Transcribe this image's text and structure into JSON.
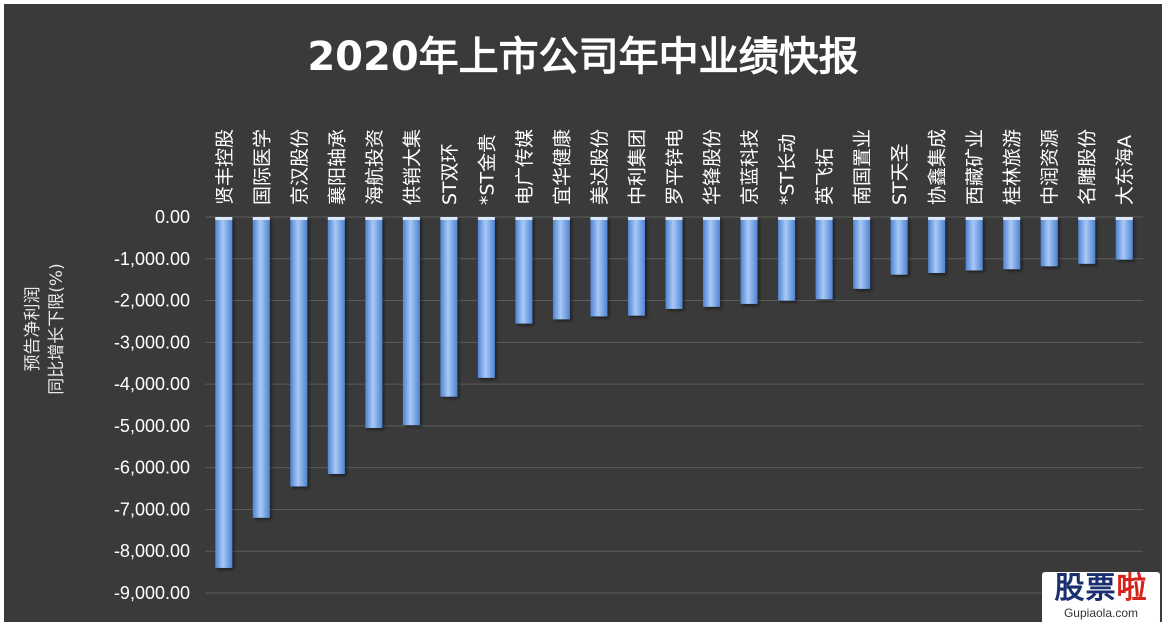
{
  "chart_data": {
    "type": "bar",
    "title": "2020年上市公司年中业绩快报",
    "ylabel_lines": [
      "预告净利润",
      "同比增长下限(%)"
    ],
    "ylim": [
      -9000,
      0
    ],
    "yticks": [
      "0.00",
      "-1,000.00",
      "-2,000.00",
      "-3,000.00",
      "-4,000.00",
      "-5,000.00",
      "-6,000.00",
      "-7,000.00",
      "-8,000.00",
      "-9,000.00"
    ],
    "categories": [
      "贤丰控股",
      "国际医学",
      "京汉股份",
      "襄阳轴承",
      "海航投资",
      "供销大集",
      "ST双环",
      "*ST金贵",
      "电广传媒",
      "宜华健康",
      "美达股份",
      "中利集团",
      "罗平锌电",
      "华锋股份",
      "京蓝科技",
      "*ST长动",
      "英飞拓",
      "南国置业",
      "ST天圣",
      "协鑫集成",
      "西藏矿业",
      "桂林旅游",
      "中润资源",
      "名雕股份",
      "大东海A"
    ],
    "values": [
      -8400,
      -7200,
      -6450,
      -6150,
      -5050,
      -4980,
      -4300,
      -3850,
      -2550,
      -2450,
      -2380,
      -2360,
      -2200,
      -2150,
      -2080,
      -2000,
      -1970,
      -1720,
      -1380,
      -1340,
      -1280,
      -1250,
      -1180,
      -1120,
      -1020
    ],
    "grid": true,
    "colors": {
      "background": "#3a3a3a",
      "grid": "#5c5c5c",
      "bar_light": "#a9c9f6",
      "bar_dark": "#4e84d2",
      "text": "#ffffff",
      "axis_label": "#e8e8e8"
    }
  },
  "watermark": {
    "logo_part1": "股票",
    "logo_part2": "啦",
    "url": "Gupiaola.com"
  }
}
